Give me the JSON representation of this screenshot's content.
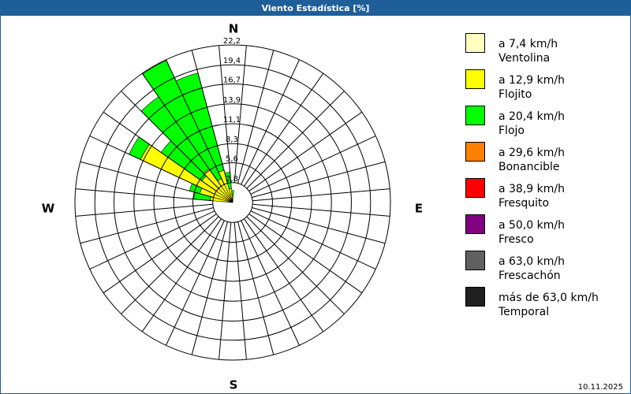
{
  "chart_data": {
    "type": "windrose",
    "title": "Viento Estadística [%]",
    "x": [
      280,
      290,
      300,
      310,
      320,
      330,
      340,
      350,
      0
    ],
    "series": [
      {
        "name": "a 7,4 km/h",
        "label": "Ventolina",
        "color": "#ffffc0",
        "values": [
          0.2,
          0.3,
          0.3,
          0.3,
          0.3,
          0.2,
          0.2,
          0.2,
          0.1
        ]
      },
      {
        "name": "a 12,9 km/h",
        "label": "Flojito",
        "color": "#ffff00",
        "values": [
          3.0,
          4.5,
          14.0,
          5.0,
          5.5,
          3.5,
          4.5,
          1.8,
          1.0
        ]
      },
      {
        "name": "a 20,4 km/h",
        "label": "Flojo",
        "color": "#00ff00",
        "values": [
          2.3,
          1.5,
          1.8,
          7.0,
          12.4,
          18.4,
          14.2,
          2.3,
          0.6
        ]
      },
      {
        "name": "a 29,6 km/h",
        "label": "Bonancible",
        "color": "#ff8000",
        "values": [
          0,
          0,
          0,
          0,
          0,
          0,
          0,
          0,
          0
        ]
      },
      {
        "name": "a 38,9 km/h",
        "label": "Fresquito",
        "color": "#ff0000",
        "values": [
          0,
          0,
          0,
          0,
          0,
          0,
          0,
          0,
          0
        ]
      },
      {
        "name": "a 50,0 km/h",
        "label": "Fresco",
        "color": "#800080",
        "values": [
          0,
          0,
          0,
          0,
          0,
          0,
          0,
          0,
          0
        ]
      },
      {
        "name": "a 63,0 km/h",
        "label": "Frescachón",
        "color": "#606060",
        "values": [
          0,
          0,
          0,
          0,
          0,
          0,
          0,
          0,
          0
        ]
      },
      {
        "name": "más de 63,0 km/h",
        "label": "Temporal",
        "color": "#202020",
        "values": [
          0,
          0,
          0,
          0,
          0,
          0,
          0,
          0,
          0
        ]
      }
    ],
    "ylim": [
      0,
      22.2
    ],
    "yticks": [
      {
        "value": 2.8,
        "label": "2,8"
      },
      {
        "value": 5.6,
        "label": "5,6"
      },
      {
        "value": 8.3,
        "label": "8,3"
      },
      {
        "value": 11.1,
        "label": "11,1"
      },
      {
        "value": 13.9,
        "label": "13,9"
      },
      {
        "value": 16.7,
        "label": "16,7"
      },
      {
        "value": 19.4,
        "label": "19,4"
      },
      {
        "value": 22.2,
        "label": "22,2"
      }
    ],
    "compass": {
      "north": "N",
      "east": "E",
      "south": "S",
      "west": "W"
    },
    "date": "10.11.2025"
  }
}
